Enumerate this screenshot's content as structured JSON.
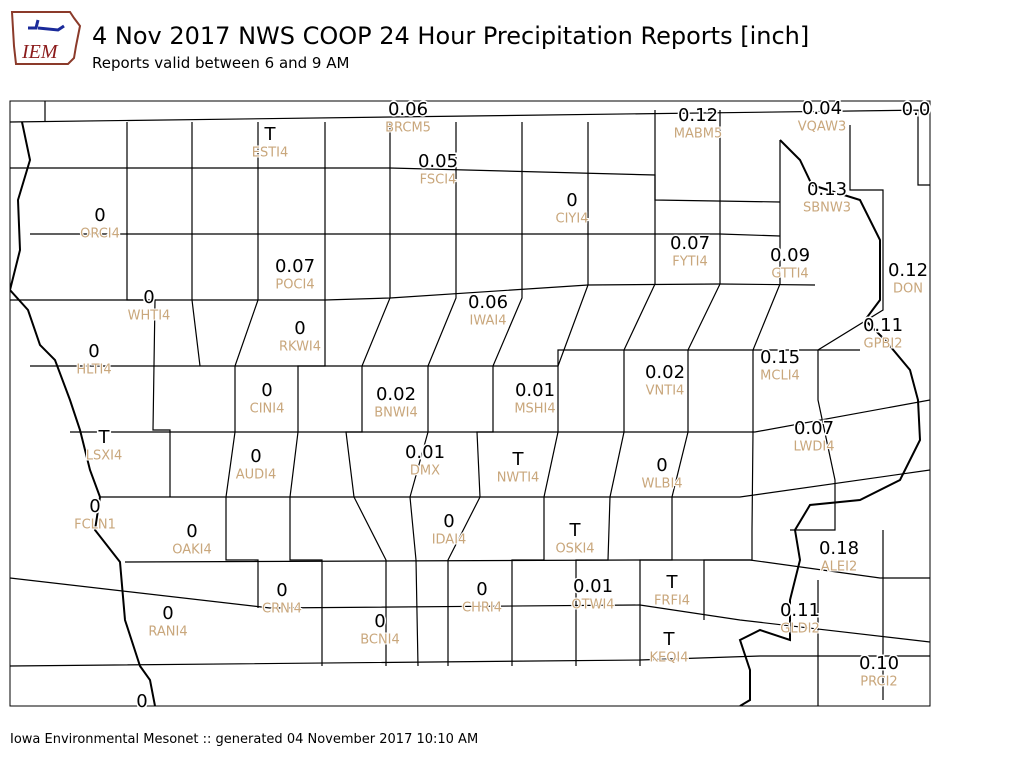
{
  "logo": {
    "text": "IEM"
  },
  "header": {
    "title": "4 Nov 2017 NWS COOP 24 Hour Precipitation Reports [inch]",
    "subtitle": "Reports valid between 6 and 9 AM"
  },
  "footer": {
    "text": "Iowa Environmental Mesonet :: generated 04 November 2017 10:10 AM"
  },
  "stations": [
    {
      "value": "0.06",
      "id": "BRCM5"
    },
    {
      "value": "0.12",
      "id": "MABM5"
    },
    {
      "value": "0.04",
      "id": "VQAW3"
    },
    {
      "value": "0.0"
    },
    {
      "value": "T",
      "id": "ESTI4"
    },
    {
      "value": "0.05",
      "id": "FSCI4"
    },
    {
      "value": "0",
      "id": "CIYI4"
    },
    {
      "value": "0.13",
      "id": "SBNW3"
    },
    {
      "value": "0",
      "id": "ORCI4"
    },
    {
      "value": "0.07",
      "id": "FYTI4"
    },
    {
      "value": "0.09",
      "id": "GTTI4"
    },
    {
      "value": "0.12",
      "id": "DON"
    },
    {
      "value": "0.07",
      "id": "POCI4"
    },
    {
      "value": "0",
      "id": "WHTI4"
    },
    {
      "value": "0.06",
      "id": "IWAI4"
    },
    {
      "value": "0.11",
      "id": "GPBI2"
    },
    {
      "value": "0",
      "id": "RKWI4"
    },
    {
      "value": "0",
      "id": "HLTI4"
    },
    {
      "value": "0.15",
      "id": "MCLI4"
    },
    {
      "value": "0.02",
      "id": "VNTI4"
    },
    {
      "value": "0",
      "id": "CINI4"
    },
    {
      "value": "0.02",
      "id": "BNWI4"
    },
    {
      "value": "0.01",
      "id": "MSHI4"
    },
    {
      "value": "0.07",
      "id": "LWDI4"
    },
    {
      "value": "T",
      "id": "LSXI4"
    },
    {
      "value": "0.01",
      "id": "DMX"
    },
    {
      "value": "0",
      "id": "AUDI4"
    },
    {
      "value": "T",
      "id": "NWTI4"
    },
    {
      "value": "0",
      "id": "WLBI4"
    },
    {
      "value": "0",
      "id": "FCLN1"
    },
    {
      "value": "0",
      "id": "OAKI4"
    },
    {
      "value": "0",
      "id": "IDAI4"
    },
    {
      "value": "T",
      "id": "OSKI4"
    },
    {
      "value": "0.18",
      "id": "ALEI2"
    },
    {
      "value": "0.01",
      "id": "OTWI4"
    },
    {
      "value": "T",
      "id": "FRFI4"
    },
    {
      "value": "0",
      "id": "CRNI4"
    },
    {
      "value": "0",
      "id": "CHRI4"
    },
    {
      "value": "0",
      "id": "RANI4"
    },
    {
      "value": "0",
      "id": "BCNI4"
    },
    {
      "value": "0.11",
      "id": "GLDI2"
    },
    {
      "value": "T",
      "id": "KEQI4"
    },
    {
      "value": "0.10",
      "id": "PRCI2"
    },
    {
      "value": "0"
    }
  ]
}
